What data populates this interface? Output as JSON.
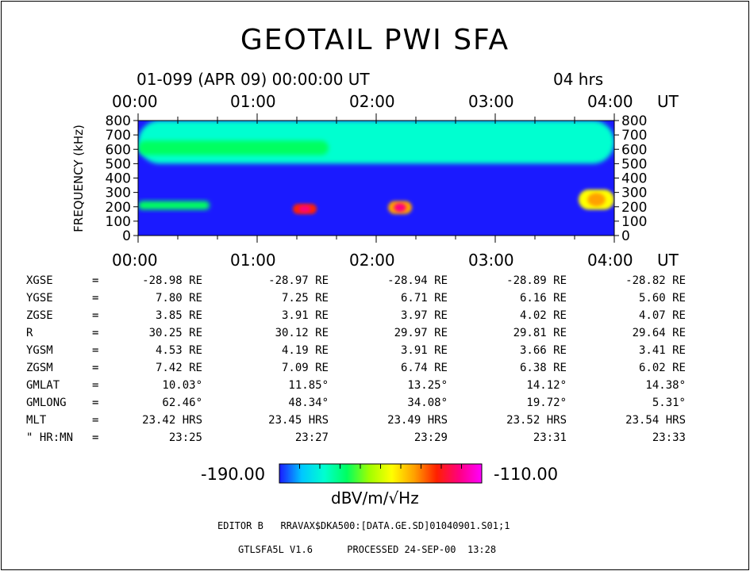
{
  "title": "GEOTAIL PWI SFA",
  "date_line": "01-099 (APR 09) 00:00:00 UT",
  "time_span": "04 hrs",
  "time_ticks": [
    "00:00",
    "01:00",
    "02:00",
    "03:00",
    "04:00"
  ],
  "time_unit": "UT",
  "ephemeris": [
    {
      "label": "XGSE",
      "sep": "=",
      "values": [
        "-28.98 RE",
        "-28.97 RE",
        "-28.94 RE",
        "-28.89 RE",
        "-28.82 RE"
      ]
    },
    {
      "label": "YGSE",
      "sep": "=",
      "values": [
        "7.80 RE",
        "7.25 RE",
        "6.71 RE",
        "6.16 RE",
        "5.60 RE"
      ]
    },
    {
      "label": "ZGSE",
      "sep": "=",
      "values": [
        "3.85 RE",
        "3.91 RE",
        "3.97 RE",
        "4.02 RE",
        "4.07 RE"
      ]
    },
    {
      "label": "R",
      "sep": "=",
      "values": [
        "30.25 RE",
        "30.12 RE",
        "29.97 RE",
        "29.81 RE",
        "29.64 RE"
      ]
    },
    {
      "label": "YGSM",
      "sep": "=",
      "values": [
        "4.53 RE",
        "4.19 RE",
        "3.91 RE",
        "3.66 RE",
        "3.41 RE"
      ]
    },
    {
      "label": "ZGSM",
      "sep": "=",
      "values": [
        "7.42 RE",
        "7.09 RE",
        "6.74 RE",
        "6.38 RE",
        "6.02 RE"
      ]
    },
    {
      "label": "GMLAT",
      "sep": "=",
      "values": [
        "10.03°",
        "11.85°",
        "13.25°",
        "14.12°",
        "14.38°"
      ]
    },
    {
      "label": "GMLONG",
      "sep": "=",
      "values": [
        "62.46°",
        "48.34°",
        "34.08°",
        "19.72°",
        "5.31°"
      ]
    },
    {
      "label": "MLT",
      "sep": "=",
      "values": [
        "23.42 HRS",
        "23.45 HRS",
        "23.49 HRS",
        "23.52 HRS",
        "23.54 HRS"
      ]
    },
    {
      "label": "\" HR:MN",
      "sep": "=",
      "values": [
        "23:25",
        "23:27",
        "23:29",
        "23:31",
        "23:33"
      ]
    }
  ],
  "colorbar": {
    "min_label": "-190.00",
    "max_label": "-110.00",
    "unit": "dBV/m/√Hz",
    "stops": [
      "#1a1aff",
      "#00c8ff",
      "#00ffd0",
      "#00ff60",
      "#a0ff00",
      "#ffff00",
      "#ffa000",
      "#ff2000",
      "#ff0080",
      "#ff00ff"
    ]
  },
  "footer": {
    "line1": "EDITOR B   RRAVAX$DKA500:[DATA.GE.SD]01040901.S01;1",
    "line2": "GTLSFA5L V1.6      PROCESSED 24-SEP-00  13:28"
  },
  "chart_data": {
    "type": "heatmap",
    "title": "GEOTAIL PWI SFA",
    "xlabel": "UT",
    "ylabel": "FREQUENCY (kHz)",
    "x_ticks": [
      "00:00",
      "01:00",
      "02:00",
      "03:00",
      "04:00"
    ],
    "y_ticks": [
      0,
      100,
      200,
      300,
      400,
      500,
      600,
      700,
      800
    ],
    "x_range_hours": [
      0,
      4
    ],
    "ylim": [
      0,
      800
    ],
    "z_unit": "dBV/m/√Hz",
    "zlim": [
      -190,
      -110
    ],
    "features": [
      {
        "name": "background",
        "level_db": -186
      },
      {
        "name": "upper band 500-800 kHz",
        "t": [
          0,
          4
        ],
        "f": [
          500,
          800
        ],
        "level_db": -172
      },
      {
        "name": "emission 560-660 kHz",
        "t": [
          0,
          1.6
        ],
        "f": [
          560,
          660
        ],
        "level_db": -160
      },
      {
        "name": "band 180-240 kHz",
        "t": [
          0,
          0.6
        ],
        "f": [
          180,
          240
        ],
        "level_db": -165
      },
      {
        "name": "burst 1.37h",
        "t": [
          1.3,
          1.5
        ],
        "f": [
          150,
          220
        ],
        "level_db": -132
      },
      {
        "name": "burst 2.2h",
        "t": [
          2.1,
          2.3
        ],
        "f": [
          150,
          240
        ],
        "level_db": -135
      },
      {
        "name": "burst 3.9h",
        "t": [
          3.7,
          4.0
        ],
        "f": [
          180,
          320
        ],
        "level_db": -150
      }
    ]
  }
}
